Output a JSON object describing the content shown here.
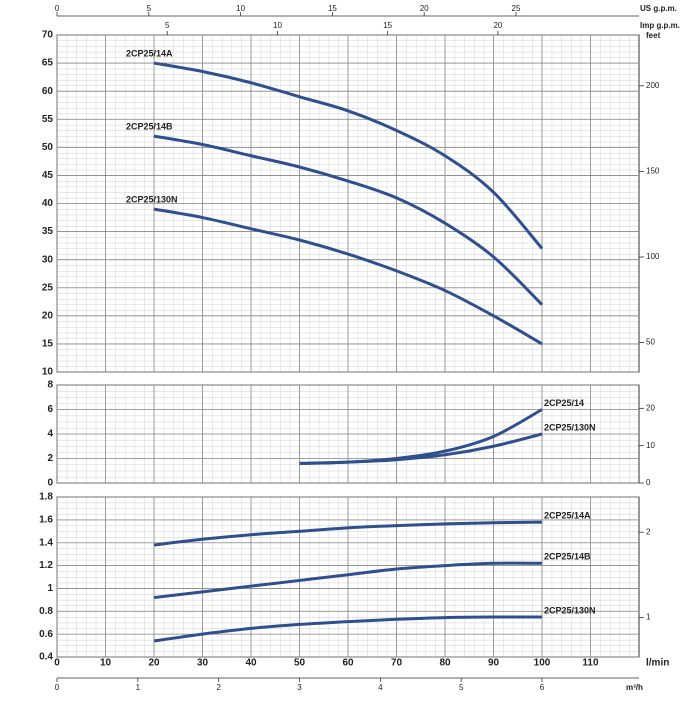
{
  "chart_data": [
    {
      "type": "line",
      "top_axes": [
        {
          "label": "US g.p.m.",
          "xlim": [
            0,
            31.7
          ],
          "xticks": [
            0,
            5,
            10,
            15,
            20,
            25
          ]
        },
        {
          "label": "Imp g.p.m.",
          "xlim": [
            0,
            26.4
          ],
          "xticks": [
            5,
            10,
            15,
            20
          ]
        }
      ],
      "xlim": [
        0,
        120
      ],
      "ylim": [
        10,
        70
      ],
      "yticks": [
        10,
        15,
        20,
        25,
        30,
        35,
        40,
        45,
        50,
        55,
        60,
        65,
        70
      ],
      "y2_label": "feet",
      "y2lim": [
        32.8,
        229.7
      ],
      "y2ticks": [
        50,
        100,
        150,
        200
      ],
      "x": [
        20,
        30,
        40,
        50,
        60,
        70,
        80,
        90,
        100
      ],
      "series": [
        {
          "name": "2CP25/14A",
          "color": "#2f4f8f",
          "values": [
            65,
            63.5,
            61.5,
            59,
            56.5,
            53,
            48.5,
            42,
            32
          ]
        },
        {
          "name": "2CP25/14B",
          "color": "#2f4f8f",
          "values": [
            52,
            50.5,
            48.5,
            46.5,
            44,
            41,
            36.5,
            30.5,
            22
          ]
        },
        {
          "name": "2CP25/130N",
          "color": "#2f4f8f",
          "values": [
            39,
            37.5,
            35.5,
            33.5,
            31,
            28,
            24.5,
            20,
            15
          ]
        }
      ]
    },
    {
      "type": "line",
      "xlim": [
        0,
        120
      ],
      "ylim": [
        0,
        8
      ],
      "yticks": [
        0,
        2,
        4,
        6,
        8
      ],
      "y2lim": [
        0,
        26.25
      ],
      "y2ticks": [
        0,
        10,
        20
      ],
      "x": [
        50,
        60,
        70,
        80,
        90,
        100
      ],
      "series": [
        {
          "name": "2CP25/14",
          "color": "#2f4f8f",
          "values": [
            1.6,
            1.7,
            2.0,
            2.6,
            3.8,
            6
          ]
        },
        {
          "name": "2CP25/130N",
          "color": "#2f4f8f",
          "values": [
            1.6,
            1.7,
            1.9,
            2.3,
            3.0,
            4
          ]
        }
      ]
    },
    {
      "type": "line",
      "xlim": [
        0,
        120
      ],
      "xticks": [
        0,
        10,
        20,
        30,
        40,
        50,
        60,
        70,
        80,
        90,
        100,
        110
      ],
      "x_label": "l/min",
      "ylim": [
        0.4,
        1.8
      ],
      "yticks": [
        0.4,
        0.6,
        0.8,
        1,
        1.2,
        1.4,
        1.6,
        1.8
      ],
      "y2lim": [
        0.536,
        2.413
      ],
      "y2ticks": [
        1,
        2
      ],
      "bottom_axis": {
        "label": "m³/h",
        "xlim": [
          0,
          7.2
        ],
        "xticks": [
          0,
          1,
          2,
          3,
          4,
          5,
          6
        ]
      },
      "x": [
        20,
        30,
        40,
        50,
        60,
        70,
        80,
        90,
        100
      ],
      "series": [
        {
          "name": "2CP25/14A",
          "color": "#2f4f8f",
          "values": [
            1.38,
            1.43,
            1.47,
            1.5,
            1.53,
            1.55,
            1.565,
            1.575,
            1.58
          ]
        },
        {
          "name": "2CP25/14B",
          "color": "#2f4f8f",
          "values": [
            0.92,
            0.97,
            1.02,
            1.07,
            1.12,
            1.17,
            1.2,
            1.22,
            1.22
          ]
        },
        {
          "name": "2CP25/130N",
          "color": "#2f4f8f",
          "values": [
            0.54,
            0.6,
            0.65,
            0.685,
            0.71,
            0.73,
            0.745,
            0.75,
            0.75
          ]
        }
      ]
    }
  ]
}
